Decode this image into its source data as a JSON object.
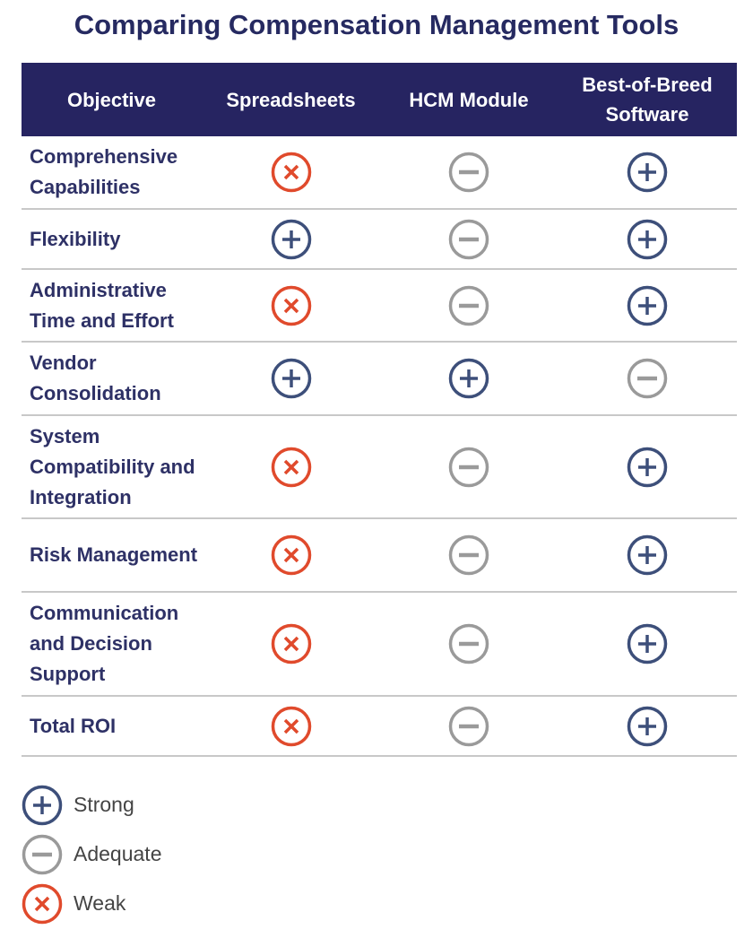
{
  "title": "Comparing Compensation Management Tools",
  "headers": [
    "Objective",
    "Spreadsheets",
    "HCM Module",
    "Best-of-Breed Software"
  ],
  "colors": {
    "strong": "#3d4f7a",
    "adequate": "#9a9a9a",
    "weak": "#e04a2c",
    "header": "#262461"
  },
  "rows": [
    {
      "objective": "Comprehensive Capabilities",
      "ratings": [
        "weak",
        "adequate",
        "strong"
      ]
    },
    {
      "objective": "Flexibility",
      "ratings": [
        "strong",
        "adequate",
        "strong"
      ]
    },
    {
      "objective": "Administrative Time and Effort",
      "ratings": [
        "weak",
        "adequate",
        "strong"
      ]
    },
    {
      "objective": "Vendor Consolidation",
      "ratings": [
        "strong",
        "strong",
        "adequate"
      ]
    },
    {
      "objective": "System Compatibility and Integration",
      "ratings": [
        "weak",
        "adequate",
        "strong"
      ]
    },
    {
      "objective": "Risk Management",
      "ratings": [
        "weak",
        "adequate",
        "strong"
      ]
    },
    {
      "objective": "Communication and Decision Support",
      "ratings": [
        "weak",
        "adequate",
        "strong"
      ]
    },
    {
      "objective": "Total ROI",
      "ratings": [
        "weak",
        "adequate",
        "strong"
      ]
    }
  ],
  "legend": [
    {
      "key": "strong",
      "label": "Strong"
    },
    {
      "key": "adequate",
      "label": "Adequate"
    },
    {
      "key": "weak",
      "label": "Weak"
    }
  ]
}
